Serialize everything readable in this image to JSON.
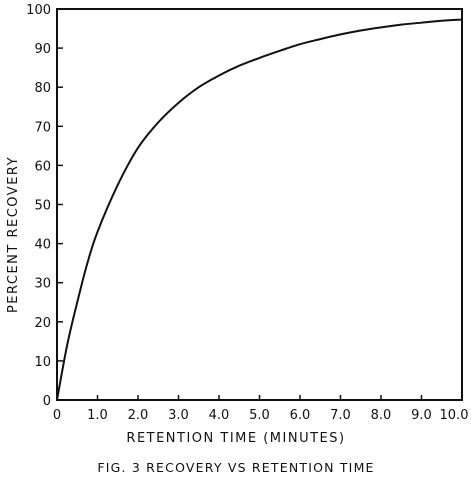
{
  "chart_data": {
    "type": "line",
    "title": "",
    "caption": "FIG. 3   RECOVERY  VS  RETENTION  TIME",
    "xlabel": "RETENTION  TIME   (MINUTES)",
    "ylabel": "PERCENT  RECOVERY",
    "xlim": [
      0,
      10
    ],
    "ylim": [
      0,
      100
    ],
    "x_ticks": [
      0,
      1,
      2,
      3,
      4,
      5,
      6,
      7,
      8,
      9,
      10
    ],
    "x_tick_labels": [
      "0",
      "1.0",
      "2.0",
      "3.0",
      "4.0",
      "5.0",
      "6.0",
      "7.0",
      "8.0",
      "9.0",
      "10.0"
    ],
    "y_ticks": [
      0,
      10,
      20,
      30,
      40,
      50,
      60,
      70,
      80,
      90,
      100
    ],
    "y_tick_labels": [
      "0",
      "10",
      "20",
      "30",
      "40",
      "50",
      "60",
      "70",
      "80",
      "90",
      "100"
    ],
    "grid": false,
    "legend": "none",
    "series": [
      {
        "color": "#111111",
        "x": [
          0,
          0.25,
          0.5,
          0.75,
          1.0,
          1.5,
          2.0,
          2.5,
          3.0,
          3.5,
          4.0,
          4.5,
          5.0,
          5.5,
          6.0,
          6.5,
          7.0,
          7.5,
          8.0,
          8.5,
          9.0,
          9.5,
          10.0
        ],
        "y": [
          0,
          14,
          25,
          35,
          43,
          55,
          64.5,
          71,
          76,
          80,
          83,
          85.5,
          87.5,
          89.3,
          91,
          92.3,
          93.5,
          94.5,
          95.3,
          96,
          96.5,
          97,
          97.3
        ]
      }
    ]
  }
}
